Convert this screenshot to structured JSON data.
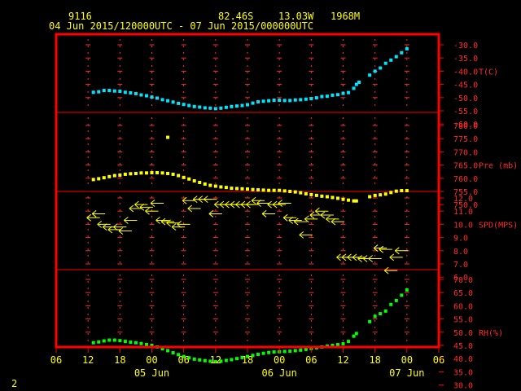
{
  "header": {
    "station": "9116",
    "lat": "82.46S",
    "lon": "13.03W",
    "elev": "1968M",
    "period": "04 Jun 2015/120000UTC - 07 Jun 2015/000000UTC"
  },
  "footer": {
    "page_number": "2"
  },
  "colors": {
    "frame": "#ff0000",
    "grid": "#ff2b2b",
    "temperature": "#00e5ff",
    "pressure": "#ffff00",
    "wind": "#ffff00",
    "rh": "#00ff00",
    "text": "#ffff00",
    "background": "#000000"
  },
  "chart_data": {
    "type": "scatter",
    "x_axis": {
      "unit": "hours since 04 Jun 2015 00:00 UTC (plotting convenience, ticks every 6h)",
      "range": [
        6,
        78
      ],
      "tick_labels": [
        "06",
        "12",
        "18",
        "00",
        "06",
        "12",
        "18",
        "00",
        "06",
        "12",
        "18",
        "00",
        "06"
      ],
      "date_labels": [
        {
          "label": "05 Jun",
          "at": 24
        },
        {
          "label": "06 Jun",
          "at": 48
        },
        {
          "label": "07 Jun",
          "at": 72
        }
      ]
    },
    "panels": [
      {
        "name": "temperature",
        "label": "T(C)",
        "ticks": [
          "-30.0",
          "-35.0",
          "-40.0",
          "-45.0",
          "-50.0",
          "-55.0",
          "-60.0"
        ],
        "tick_values": [
          -30,
          -35,
          -40,
          -45,
          -50,
          -55,
          -60
        ],
        "ylim": [
          -60,
          -28
        ],
        "points": [
          [
            13,
            -48
          ],
          [
            14,
            -47.8
          ],
          [
            15,
            -47.3
          ],
          [
            16,
            -47.3
          ],
          [
            17,
            -47.5
          ],
          [
            18,
            -47.6
          ],
          [
            19,
            -48
          ],
          [
            20,
            -48.2
          ],
          [
            21,
            -48.5
          ],
          [
            22,
            -49
          ],
          [
            23,
            -49.3
          ],
          [
            24,
            -49.8
          ],
          [
            25,
            -50.2
          ],
          [
            26,
            -50.8
          ],
          [
            27,
            -51.2
          ],
          [
            28,
            -51.7
          ],
          [
            29,
            -52.2
          ],
          [
            30,
            -52.6
          ],
          [
            31,
            -53
          ],
          [
            32,
            -53.4
          ],
          [
            33,
            -53.6
          ],
          [
            34,
            -53.9
          ],
          [
            35,
            -54
          ],
          [
            36,
            -54.2
          ],
          [
            37,
            -54
          ],
          [
            38,
            -53.7
          ],
          [
            39,
            -53.4
          ],
          [
            40,
            -53.2
          ],
          [
            41,
            -53
          ],
          [
            42,
            -52.7
          ],
          [
            43,
            -52.1
          ],
          [
            44,
            -51.6
          ],
          [
            45,
            -51.4
          ],
          [
            46,
            -51.2
          ],
          [
            47,
            -51
          ],
          [
            48,
            -51
          ],
          [
            49,
            -51.1
          ],
          [
            50,
            -51.1
          ],
          [
            51,
            -50.9
          ],
          [
            52,
            -50.8
          ],
          [
            53,
            -50.6
          ],
          [
            54,
            -50.4
          ],
          [
            55,
            -50.1
          ],
          [
            56,
            -49.6
          ],
          [
            57,
            -49.5
          ],
          [
            58,
            -49.1
          ],
          [
            59,
            -48.9
          ],
          [
            60,
            -48.4
          ],
          [
            61,
            -48.1
          ],
          [
            62,
            -46.5
          ],
          [
            62.5,
            -45
          ],
          [
            63,
            -44.2
          ],
          [
            65,
            -41.5
          ],
          [
            66,
            -40
          ],
          [
            67,
            -38.8
          ],
          [
            68,
            -37
          ],
          [
            69,
            -35.8
          ],
          [
            70,
            -34.5
          ],
          [
            71,
            -33
          ],
          [
            72,
            -31.5
          ]
        ]
      },
      {
        "name": "pressure",
        "label": "Pre (mb)",
        "ticks": [
          "780.0",
          "775.0",
          "770.0",
          "765.0",
          "760.0",
          "755.0",
          "750.0"
        ],
        "tick_values": [
          780,
          775,
          770,
          765,
          760,
          755,
          750
        ],
        "ylim": [
          750,
          780
        ],
        "points": [
          [
            13,
            759.5
          ],
          [
            14,
            759.8
          ],
          [
            15,
            760.2
          ],
          [
            16,
            760.6
          ],
          [
            17,
            761
          ],
          [
            18,
            761.2
          ],
          [
            19,
            761.5
          ],
          [
            20,
            761.7
          ],
          [
            21,
            761.8
          ],
          [
            22,
            762
          ],
          [
            23,
            762
          ],
          [
            24,
            762.1
          ],
          [
            25,
            762.1
          ],
          [
            26,
            762
          ],
          [
            27,
            761.8
          ],
          [
            28,
            761.5
          ],
          [
            29,
            761
          ],
          [
            30,
            760.3
          ],
          [
            31,
            759.7
          ],
          [
            32,
            759
          ],
          [
            33,
            758.4
          ],
          [
            34,
            757.8
          ],
          [
            35,
            757.3
          ],
          [
            36,
            757
          ],
          [
            37,
            756.7
          ],
          [
            38,
            756.5
          ],
          [
            39,
            756.2
          ],
          [
            40,
            756.1
          ],
          [
            41,
            756
          ],
          [
            42,
            755.9
          ],
          [
            43,
            755.7
          ],
          [
            44,
            755.6
          ],
          [
            45,
            755.5
          ],
          [
            46,
            755.4
          ],
          [
            47,
            755.4
          ],
          [
            48,
            755.4
          ],
          [
            49,
            755.2
          ],
          [
            50,
            755
          ],
          [
            51,
            754.8
          ],
          [
            52,
            754.5
          ],
          [
            53,
            754.1
          ],
          [
            54,
            753.8
          ],
          [
            55,
            753.5
          ],
          [
            56,
            753.2
          ],
          [
            57,
            753
          ],
          [
            58,
            752.7
          ],
          [
            59,
            752.4
          ],
          [
            60,
            752
          ],
          [
            61,
            751.7
          ],
          [
            62,
            751.4
          ],
          [
            62.5,
            751.4
          ],
          [
            65,
            753
          ],
          [
            66,
            753.5
          ],
          [
            67,
            753.7
          ],
          [
            68,
            754
          ],
          [
            69,
            754.6
          ],
          [
            70,
            755.1
          ],
          [
            71,
            755.3
          ],
          [
            72,
            755.3
          ],
          [
            27,
            775.5
          ]
        ]
      },
      {
        "name": "wind",
        "label": "SPD(MPS)",
        "ticks": [
          "12.0",
          "11.0",
          "10.0",
          "9.0",
          "8.0",
          "7.0",
          "6.0"
        ],
        "tick_values": [
          12,
          11,
          10,
          9,
          8,
          7,
          6
        ],
        "ylim": [
          6,
          12
        ],
        "barbs": [
          [
            13,
            10.5
          ],
          [
            14,
            10.8
          ],
          [
            15,
            10
          ],
          [
            16,
            9.8
          ],
          [
            17,
            9.6
          ],
          [
            18,
            9.8
          ],
          [
            19,
            9.5
          ],
          [
            20,
            10.3
          ],
          [
            21,
            11.2
          ],
          [
            22,
            11.5
          ],
          [
            23,
            11.3
          ],
          [
            24,
            11
          ],
          [
            25,
            11.6
          ],
          [
            26,
            10.3
          ],
          [
            27,
            10.2
          ],
          [
            28,
            10.1
          ],
          [
            29,
            9.8
          ],
          [
            30,
            10
          ],
          [
            31,
            11.8
          ],
          [
            32,
            11.2
          ],
          [
            33,
            11.9
          ],
          [
            34,
            11.9
          ],
          [
            35,
            11.9
          ],
          [
            36,
            10.8
          ],
          [
            37,
            11.5
          ],
          [
            38,
            11.5
          ],
          [
            39,
            11.5
          ],
          [
            40,
            11.5
          ],
          [
            41,
            11.5
          ],
          [
            42,
            11.5
          ],
          [
            43,
            11.5
          ],
          [
            44,
            11.8
          ],
          [
            45,
            11.6
          ],
          [
            46,
            10.8
          ],
          [
            47,
            11.5
          ],
          [
            48,
            11.5
          ],
          [
            49,
            11.6
          ],
          [
            50,
            10.5
          ],
          [
            51,
            10.3
          ],
          [
            52,
            10.2
          ],
          [
            53,
            9.2
          ],
          [
            54,
            10.4
          ],
          [
            55,
            10.7
          ],
          [
            56,
            11
          ],
          [
            57,
            10.7
          ],
          [
            58,
            10.4
          ],
          [
            59,
            10.2
          ],
          [
            60,
            7.5
          ],
          [
            61,
            7.5
          ],
          [
            62,
            7.5
          ],
          [
            63,
            7.5
          ],
          [
            64,
            7.4
          ],
          [
            65,
            7.4
          ],
          [
            66,
            7.4
          ],
          [
            67,
            8.2
          ],
          [
            68,
            8.1
          ],
          [
            69,
            6.5
          ],
          [
            70,
            7.5
          ],
          [
            71,
            8
          ]
        ]
      },
      {
        "name": "rh",
        "label": "RH(%)",
        "ticks": [
          "70.0",
          "65.0",
          "60.0",
          "55.0",
          "50.0",
          "45.0",
          "40.0",
          "35.0",
          "30.0"
        ],
        "tick_values": [
          70,
          65,
          60,
          55,
          50,
          45,
          40,
          35,
          30
        ],
        "ylim": [
          30,
          70
        ],
        "points": [
          [
            13,
            46
          ],
          [
            14,
            46.3
          ],
          [
            15,
            46.7
          ],
          [
            16,
            47
          ],
          [
            17,
            47
          ],
          [
            18,
            46.8
          ],
          [
            19,
            46.5
          ],
          [
            20,
            46.2
          ],
          [
            21,
            46
          ],
          [
            22,
            45.7
          ],
          [
            23,
            45.3
          ],
          [
            24,
            45
          ],
          [
            25,
            44.4
          ],
          [
            26,
            43.7
          ],
          [
            27,
            43
          ],
          [
            28,
            42.2
          ],
          [
            29,
            41.5
          ],
          [
            30,
            40.8
          ],
          [
            31,
            40.3
          ],
          [
            32,
            39.8
          ],
          [
            33,
            39.5
          ],
          [
            34,
            39.2
          ],
          [
            35,
            39
          ],
          [
            36,
            38.8
          ],
          [
            37,
            39
          ],
          [
            38,
            39.3
          ],
          [
            39,
            39.6
          ],
          [
            40,
            40
          ],
          [
            41,
            40.4
          ],
          [
            42,
            40.8
          ],
          [
            43,
            41.2
          ],
          [
            44,
            41.6
          ],
          [
            45,
            42
          ],
          [
            46,
            42.3
          ],
          [
            47,
            42.5
          ],
          [
            48,
            42.6
          ],
          [
            49,
            42.7
          ],
          [
            50,
            42.8
          ],
          [
            51,
            43
          ],
          [
            52,
            43.2
          ],
          [
            53,
            43.5
          ],
          [
            54,
            43.8
          ],
          [
            55,
            44.1
          ],
          [
            56,
            44.4
          ],
          [
            57,
            44.7
          ],
          [
            58,
            45
          ],
          [
            59,
            45.3
          ],
          [
            60,
            45.6
          ],
          [
            61,
            46.5
          ],
          [
            62,
            48.5
          ],
          [
            62.5,
            49.5
          ],
          [
            65,
            54
          ],
          [
            66,
            56
          ],
          [
            67,
            57
          ],
          [
            68,
            58
          ],
          [
            69,
            60.5
          ],
          [
            70,
            62
          ],
          [
            71,
            64
          ],
          [
            72,
            66
          ]
        ]
      }
    ]
  }
}
